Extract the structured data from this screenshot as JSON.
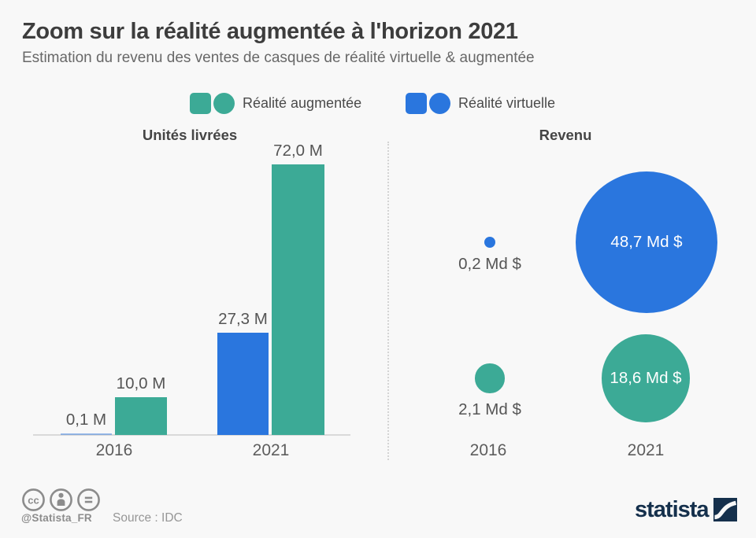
{
  "header": {
    "title": "Zoom sur la réalité augmentée à l'horizon 2021",
    "subtitle": "Estimation du revenu des ventes de casques de réalité virtuelle & augmentée"
  },
  "legend": {
    "items": [
      {
        "label": "Réalité augmentée",
        "color": "#3caa96"
      },
      {
        "label": "Réalité virtuelle",
        "color": "#2a76de"
      }
    ]
  },
  "chart_data": [
    {
      "type": "bar",
      "title": "Unités livrées",
      "categories": [
        "2016",
        "2021"
      ],
      "series": [
        {
          "name": "Réalité virtuelle",
          "color": "#2a76de",
          "values": [
            0.1,
            27.3
          ],
          "labels": [
            "0,1 M",
            "27,3 M"
          ]
        },
        {
          "name": "Réalité augmentée",
          "color": "#3caa96",
          "values": [
            10.0,
            72.0
          ],
          "labels": [
            "10,0 M",
            "72,0 M"
          ]
        }
      ],
      "unit": "M",
      "ylim": [
        0,
        72
      ],
      "grid": false,
      "legend_position": "top"
    },
    {
      "type": "bubble",
      "title": "Revenu",
      "categories": [
        "2016",
        "2021"
      ],
      "series": [
        {
          "name": "Réalité virtuelle",
          "color": "#2a76de",
          "values": [
            0.2,
            48.7
          ],
          "labels": [
            "0,2 Md $",
            "48,7 Md $"
          ]
        },
        {
          "name": "Réalité augmentée",
          "color": "#3caa96",
          "values": [
            2.1,
            18.6
          ],
          "labels": [
            "2,1 Md $",
            "18,6 Md $"
          ]
        }
      ],
      "unit": "Md $"
    }
  ],
  "footer": {
    "handle": "@Statista_FR",
    "source": "Source : IDC",
    "brand": "statista",
    "license_icons": [
      "cc",
      "by",
      "nd"
    ],
    "brand_color": "#15304c"
  }
}
